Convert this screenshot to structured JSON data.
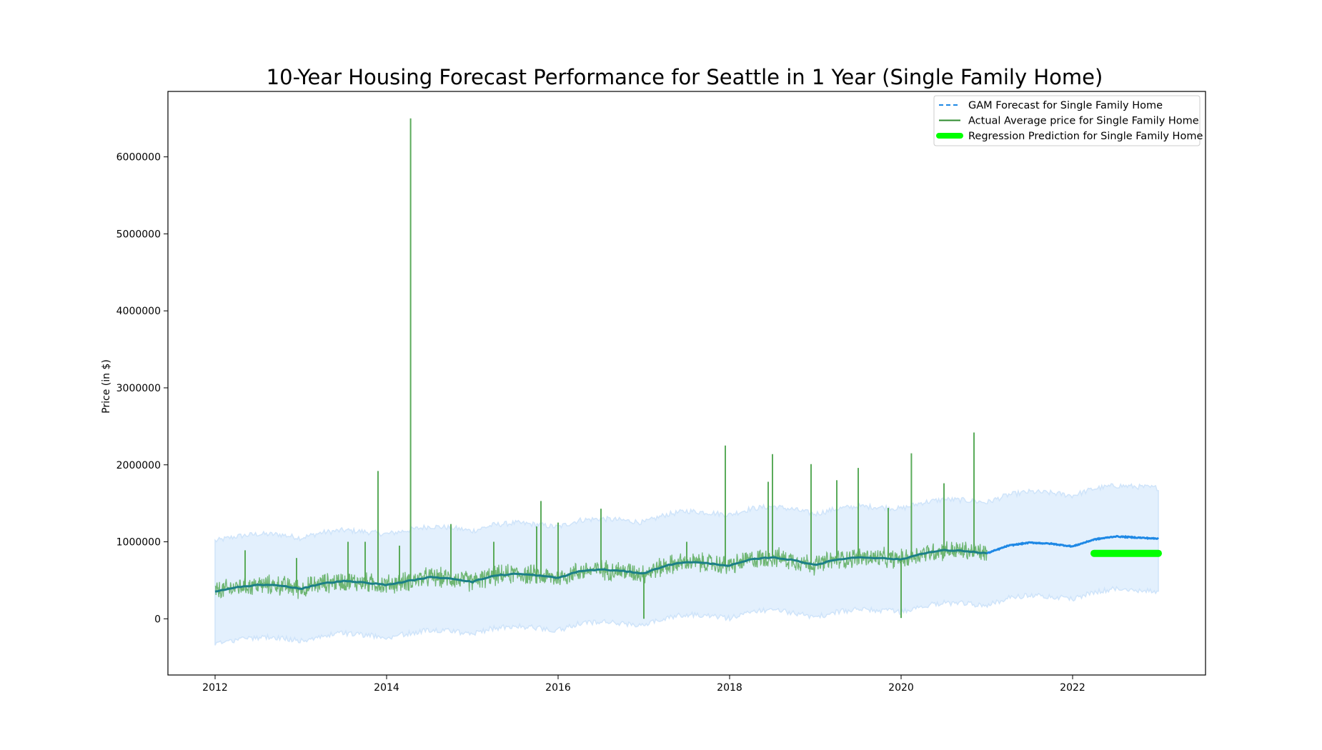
{
  "chart_data": {
    "type": "line",
    "title": "10-Year Housing Forecast Performance for Seattle in 1 Year (Single Family Home)",
    "xlabel": "",
    "ylabel": "Price (in $)",
    "xlim": [
      2011.45,
      2023.55
    ],
    "ylim": [
      -730000,
      6850000
    ],
    "x_ticks": [
      2012,
      2014,
      2016,
      2018,
      2020,
      2022
    ],
    "x_tick_labels": [
      "2012",
      "2014",
      "2016",
      "2018",
      "2020",
      "2022"
    ],
    "y_ticks": [
      0,
      1000000,
      2000000,
      3000000,
      4000000,
      5000000,
      6000000
    ],
    "y_tick_labels": [
      "0",
      "1000000",
      "2000000",
      "3000000",
      "4000000",
      "5000000",
      "6000000"
    ],
    "grid": false,
    "legend_position": "top-right",
    "series": [
      {
        "name": "GAM Forecast for Single Family Home",
        "style": "dashed",
        "color": "#1e88e5",
        "x": [
          2012.0,
          2012.25,
          2012.5,
          2012.75,
          2013.0,
          2013.25,
          2013.5,
          2013.75,
          2014.0,
          2014.25,
          2014.5,
          2014.75,
          2015.0,
          2015.25,
          2015.5,
          2015.75,
          2016.0,
          2016.25,
          2016.5,
          2016.75,
          2017.0,
          2017.25,
          2017.5,
          2017.75,
          2018.0,
          2018.25,
          2018.5,
          2018.75,
          2019.0,
          2019.25,
          2019.5,
          2019.75,
          2020.0,
          2020.25,
          2020.5,
          2020.75,
          2021.0,
          2021.25,
          2021.5,
          2021.75,
          2022.0,
          2022.25,
          2022.5,
          2022.75,
          2023.0
        ],
        "y": [
          350000,
          410000,
          440000,
          435000,
          390000,
          460000,
          490000,
          470000,
          440000,
          490000,
          540000,
          525000,
          480000,
          560000,
          585000,
          565000,
          530000,
          620000,
          640000,
          620000,
          590000,
          690000,
          740000,
          720000,
          690000,
          770000,
          800000,
          760000,
          700000,
          770000,
          800000,
          790000,
          770000,
          850000,
          890000,
          880000,
          850000,
          950000,
          990000,
          975000,
          940000,
          1030000,
          1070000,
          1055000,
          1040000
        ]
      },
      {
        "name": "Actual Average price for Single Family Home",
        "style": "solid",
        "color": "#2e8b2e",
        "x_range": [
          2012.0,
          2021.0
        ],
        "typical_noise": 110000,
        "spikes": [
          {
            "x": 2012.35,
            "y": 890000
          },
          {
            "x": 2012.95,
            "y": 790000
          },
          {
            "x": 2013.55,
            "y": 1000000
          },
          {
            "x": 2013.75,
            "y": 1000000
          },
          {
            "x": 2013.9,
            "y": 1920000
          },
          {
            "x": 2014.15,
            "y": 950000
          },
          {
            "x": 2014.28,
            "y": 6500000
          },
          {
            "x": 2014.75,
            "y": 1230000
          },
          {
            "x": 2015.25,
            "y": 1000000
          },
          {
            "x": 2015.75,
            "y": 1200000
          },
          {
            "x": 2015.8,
            "y": 1530000
          },
          {
            "x": 2016.0,
            "y": 1250000
          },
          {
            "x": 2016.5,
            "y": 1430000
          },
          {
            "x": 2017.0,
            "y": 0
          },
          {
            "x": 2017.5,
            "y": 1000000
          },
          {
            "x": 2017.95,
            "y": 2250000
          },
          {
            "x": 2018.5,
            "y": 2140000
          },
          {
            "x": 2018.45,
            "y": 1780000
          },
          {
            "x": 2018.95,
            "y": 2010000
          },
          {
            "x": 2019.25,
            "y": 1800000
          },
          {
            "x": 2019.5,
            "y": 1960000
          },
          {
            "x": 2019.85,
            "y": 1440000
          },
          {
            "x": 2020.0,
            "y": 10000
          },
          {
            "x": 2020.12,
            "y": 2150000
          },
          {
            "x": 2020.5,
            "y": 1760000
          },
          {
            "x": 2020.85,
            "y": 2420000
          }
        ]
      },
      {
        "name": "Regression Prediction for Single Family Home",
        "style": "thick",
        "color": "#00ff00",
        "x": [
          2022.25,
          2023.0
        ],
        "y": [
          850000,
          850000
        ]
      }
    ],
    "confidence_band": {
      "color": "#d6e9fb",
      "upper_offset": 660000,
      "lower_offset": 680000
    }
  }
}
